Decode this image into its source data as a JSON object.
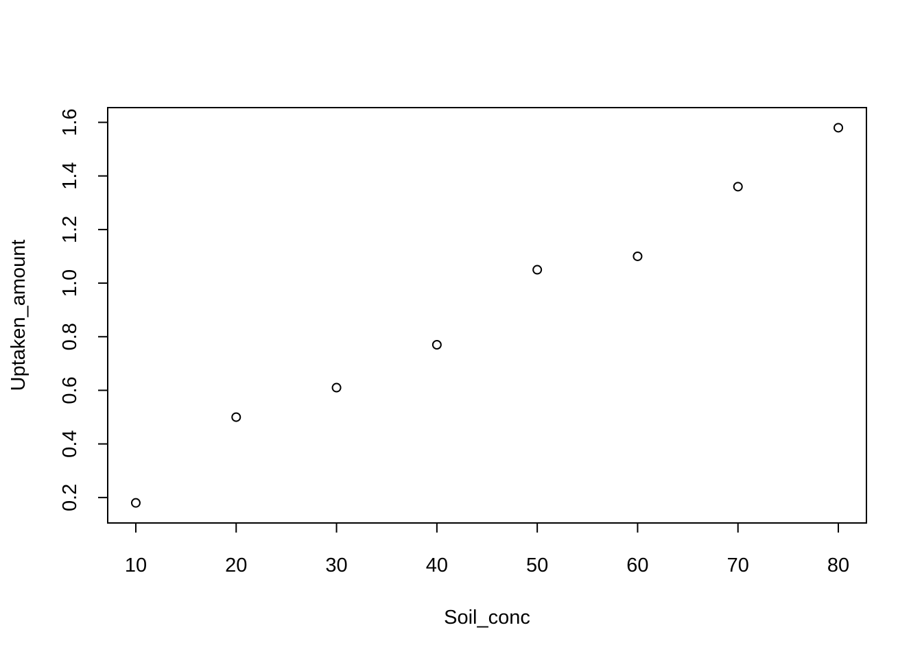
{
  "chart_data": {
    "type": "scatter",
    "title": "",
    "xlabel": "Soil_conc",
    "ylabel": "Uptaken_amount",
    "x": [
      10,
      20,
      30,
      40,
      50,
      60,
      70,
      80
    ],
    "y": [
      0.18,
      0.5,
      0.61,
      0.77,
      1.05,
      1.1,
      1.36,
      1.58
    ],
    "xlim": [
      7.2,
      82.8
    ],
    "ylim": [
      0.105,
      1.655
    ],
    "xticks": [
      "10",
      "20",
      "30",
      "40",
      "50",
      "60",
      "70",
      "80"
    ],
    "yticks": [
      "0.2",
      "0.4",
      "0.6",
      "0.8",
      "1.0",
      "1.2",
      "1.4",
      "1.6"
    ],
    "grid": false,
    "marker": "open-circle",
    "colors": {
      "points": "#000000",
      "background": "#ffffff"
    }
  }
}
